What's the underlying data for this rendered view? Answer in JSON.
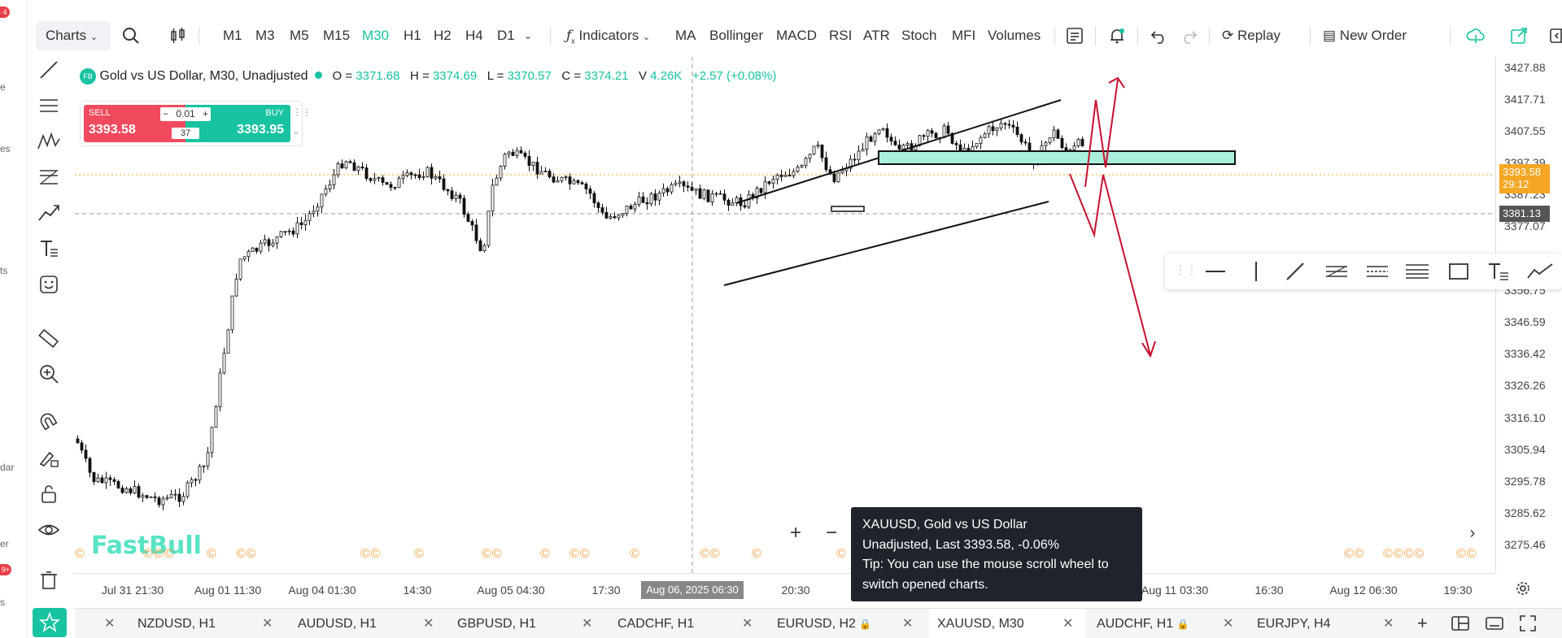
{
  "left_edge": {
    "badge_top": "4",
    "badge_bottom": "9+",
    "labels": [
      "e",
      "es",
      "ts",
      "dar",
      "er",
      "s"
    ]
  },
  "toolbar": {
    "charts_label": "Charts",
    "timeframes": [
      "M1",
      "M3",
      "M5",
      "M15",
      "M30",
      "H1",
      "H2",
      "H4",
      "D1"
    ],
    "active_timeframe": "M30",
    "indicators_label": "Indicators",
    "indicator_items": [
      "MA",
      "Bollinger",
      "MACD",
      "RSI",
      "ATR",
      "Stoch",
      "MFI",
      "Volumes"
    ],
    "replay_label": "Replay",
    "new_order_label": "New Order"
  },
  "header": {
    "badge": "FB",
    "symbol_title": "Gold vs US Dollar, M30, Unadjusted",
    "o_label": "O =",
    "o_value": "3371.68",
    "h_label": "H =",
    "h_value": "3374.69",
    "l_label": "L =",
    "l_value": "3370.57",
    "c_label": "C =",
    "c_value": "3374.21",
    "v_label": "V",
    "v_value": "4.26K",
    "change": "+2.57 (+0.08%)"
  },
  "trade": {
    "sell_label": "SELL",
    "sell_price": "3393.58",
    "buy_label": "BUY",
    "buy_price": "3393.95",
    "lot": "0.01",
    "spread": "37"
  },
  "price_axis": {
    "labels": [
      "3427.88",
      "3417.71",
      "3407.55",
      "3397.39",
      "3387.23",
      "3377.07",
      "3356.75",
      "3346.59",
      "3336.42",
      "3326.26",
      "3316.10",
      "3305.94",
      "3295.78",
      "3285.62",
      "3275.46"
    ],
    "current_price": "3393.58",
    "countdown": "29:12",
    "crosshair_price": "3381.13"
  },
  "time_axis": {
    "labels": [
      "Jul 31 21:30",
      "Aug 01 11:30",
      "Aug 04 01:30",
      "14:30",
      "Aug 05 04:30",
      "17:30",
      "20:30",
      "Aug 11 03:30",
      "16:30",
      "Aug 12 06:30",
      "19:30"
    ],
    "crosshair_time": "Aug 06, 2025 06:30"
  },
  "logo_text": "FastBull",
  "tooltip": {
    "line1": "XAUUSD, Gold vs US Dollar",
    "line2": "Unadjusted, Last 3393.58, -0.06%",
    "line3": "Tip: You can use the mouse scroll wheel to switch opened charts."
  },
  "tabs": [
    {
      "label": "NZDUSD, H1",
      "locked": false
    },
    {
      "label": "AUDUSD, H1",
      "locked": false
    },
    {
      "label": "GBPUSD, H1",
      "locked": false
    },
    {
      "label": "CADCHF, H1",
      "locked": false
    },
    {
      "label": "EURUSD, H2",
      "locked": true
    },
    {
      "label": "XAUUSD, M30",
      "locked": false,
      "active": true
    },
    {
      "label": "AUDCHF, H1",
      "locked": true
    },
    {
      "label": "EURJPY, H4",
      "locked": false
    }
  ],
  "colors": {
    "up": "#17c3a0",
    "down": "#f04a5e",
    "accent": "#17c3a0",
    "arrow": "#c8102e",
    "price_tag": "#f5a623"
  }
}
